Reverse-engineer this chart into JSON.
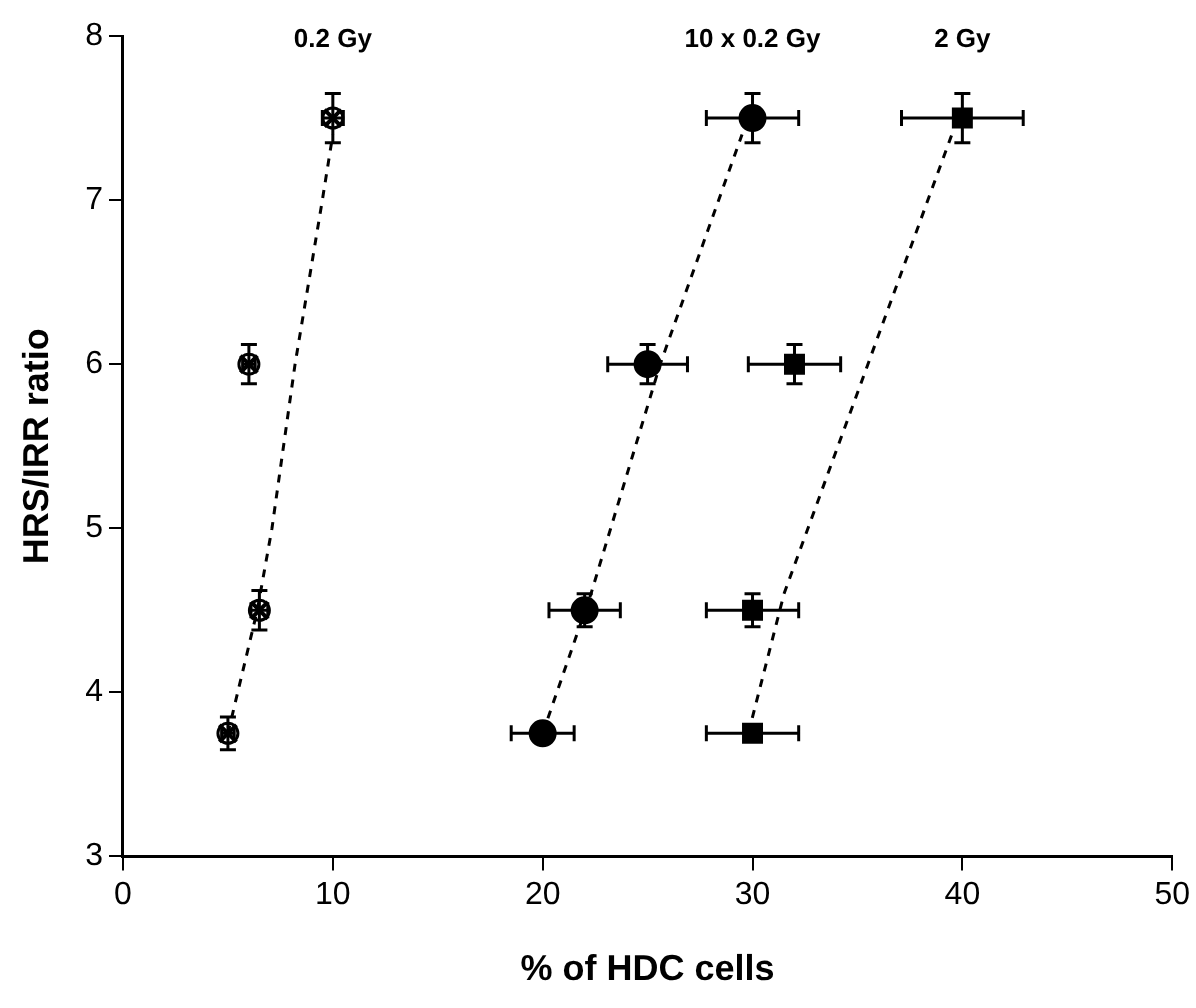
{
  "chart_data": {
    "type": "scatter",
    "xlabel": "% of HDC cells",
    "ylabel": "HRS/IRR ratio",
    "xlim": [
      0,
      50
    ],
    "xticks": [
      0,
      10,
      20,
      30,
      40,
      50
    ],
    "ylim": [
      3,
      8
    ],
    "yticks": [
      3,
      4,
      5,
      6,
      7,
      8
    ],
    "grid": false,
    "series": [
      {
        "name": "0.2 Gy",
        "color": "#000000",
        "marker": "cross",
        "x": [
          10,
          6,
          6.5,
          5
        ],
        "values": [
          7.5,
          6,
          4.5,
          3.75
        ],
        "errors": [
          0.15,
          0.12,
          0.12,
          0.1
        ],
        "xerrors": [
          0.5,
          0.3,
          0.4,
          0.3
        ]
      },
      {
        "name": "10 x 0.2 Gy",
        "color": "#000000",
        "marker": "circle",
        "x": [
          30,
          25,
          22,
          20
        ],
        "values": [
          7.5,
          6,
          4.5,
          3.75
        ],
        "errors": [
          0.15,
          0.12,
          0.1,
          null
        ],
        "xerrors": [
          2.2,
          1.9,
          1.7,
          1.5
        ]
      },
      {
        "name": "2 Gy",
        "color": "#000000",
        "marker": "square",
        "x": [
          40,
          32,
          30,
          30
        ],
        "values": [
          7.5,
          6,
          4.5,
          3.75
        ],
        "errors": [
          0.15,
          0.12,
          0.1,
          null
        ],
        "xerrors": [
          2.9,
          2.2,
          2.2,
          2.2
        ]
      },
      {
        "type": "line",
        "color": "#000000",
        "line_style": "dashed",
        "marker": "none",
        "x": [
          5,
          6.4,
          7.1,
          8.2,
          9.5,
          10
        ],
        "values": [
          3.75,
          4.5,
          5,
          6,
          7,
          7.4
        ]
      },
      {
        "type": "line",
        "color": "#000000",
        "line_style": "dashed",
        "marker": "none",
        "x": [
          20,
          22.3,
          25.6,
          29.5
        ],
        "values": [
          3.75,
          4.6,
          6,
          7.4
        ]
      },
      {
        "type": "line",
        "color": "#000000",
        "line_style": "dashed",
        "marker": "none",
        "x": [
          29.8,
          31.5,
          35.5,
          39.5
        ],
        "values": [
          3.75,
          4.6,
          6,
          7.4
        ]
      }
    ]
  }
}
